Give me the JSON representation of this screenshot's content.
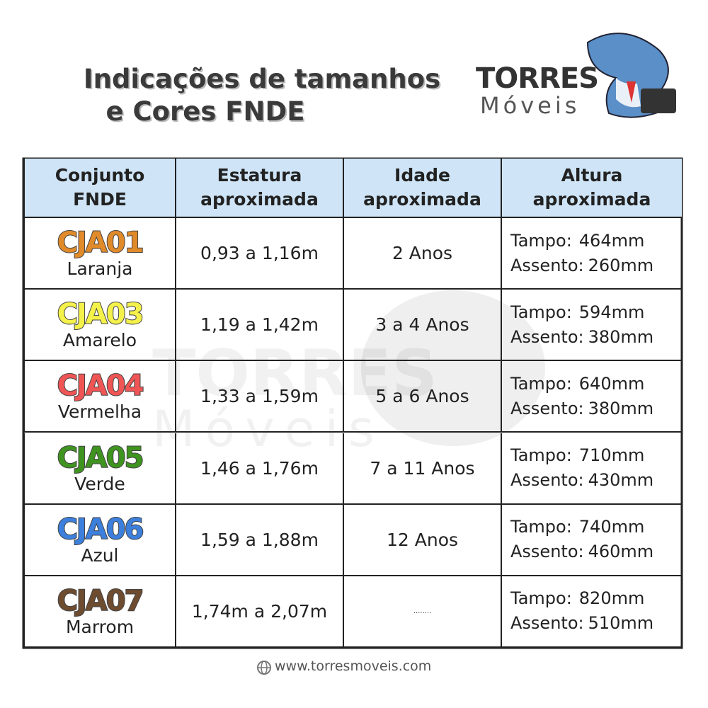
{
  "header": {
    "title_lines": [
      "Indicações de tamanhos",
      "e Cores FNDE"
    ]
  },
  "logo": {
    "name": "TORRES",
    "subname": "Móveis"
  },
  "table": {
    "columns": [
      "Conjunto\nFNDE",
      "Estatura\naproximada",
      "Idade\naproximada",
      "Altura\naproximada"
    ],
    "tampo_label": "Tampo:",
    "assento_label": "Assento:",
    "rows": [
      {
        "code": "CJA01",
        "color_name": "Laranja",
        "color": "#e08a2a",
        "estatura": "0,93 a 1,16m",
        "idade": "2 Anos",
        "tampo": "464mm",
        "assento": "260mm"
      },
      {
        "code": "CJA03",
        "color_name": "Amarelo",
        "color": "#f4f24a",
        "estatura": "1,19 a 1,42m",
        "idade": "3 a 4 Anos",
        "tampo": "594mm",
        "assento": "380mm"
      },
      {
        "code": "CJA04",
        "color_name": "Vermelha",
        "color": "#f05555",
        "estatura": "1,33 a 1,59m",
        "idade": "5 a 6 Anos",
        "tampo": "640mm",
        "assento": "380mm"
      },
      {
        "code": "CJA05",
        "color_name": "Verde",
        "color": "#3f9420",
        "estatura": "1,46 a 1,76m",
        "idade": "7 a 11 Anos",
        "tampo": "710mm",
        "assento": "430mm"
      },
      {
        "code": "CJA06",
        "color_name": "Azul",
        "color": "#3c7fdc",
        "estatura": "1,59 a 1,88m",
        "idade": "12 Anos",
        "tampo": "740mm",
        "assento": "460mm"
      },
      {
        "code": "CJA07",
        "color_name": "Marrom",
        "color": "#6e4c30",
        "estatura": "1,74m a 2,07m",
        "idade": "........",
        "tampo": "820mm",
        "assento": "510mm"
      }
    ]
  },
  "footer": {
    "url": "www.torresmoveis.com"
  }
}
